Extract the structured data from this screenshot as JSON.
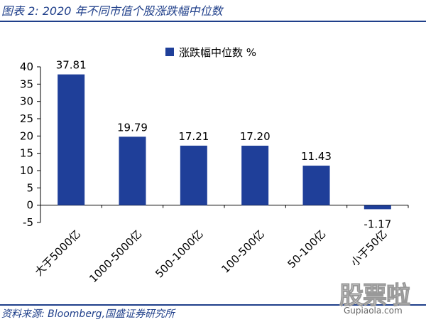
{
  "figure_title": "图表 2:  2020 年不同市值个股涨跌幅中位数",
  "source_note": "资料来源:  Bloomberg,国盛证券研究所",
  "watermark": {
    "text": "股票啦",
    "url": "Gupiaola.com"
  },
  "colors": {
    "bar": "#1f3f99",
    "title": "#1f3f8a",
    "axis": "#000000"
  },
  "chart_data": {
    "type": "bar",
    "categories": [
      "大于5000亿",
      "1000-5000亿",
      "500-1000亿",
      "100-500亿",
      "50-100亿",
      "小于50亿"
    ],
    "series": [
      {
        "name": "涨跌幅中位数 %",
        "values": [
          37.81,
          19.79,
          17.21,
          17.2,
          11.43,
          -1.17
        ]
      }
    ],
    "data_labels": [
      "37.81",
      "19.79",
      "17.21",
      "17.20",
      "11.43",
      "-1.17"
    ],
    "ylim": [
      -5,
      40
    ],
    "yticks": [
      -5,
      0,
      5,
      10,
      15,
      20,
      25,
      30,
      35,
      40
    ],
    "grid": false,
    "legend": "top-center",
    "title": "",
    "xlabel": "",
    "ylabel": ""
  }
}
